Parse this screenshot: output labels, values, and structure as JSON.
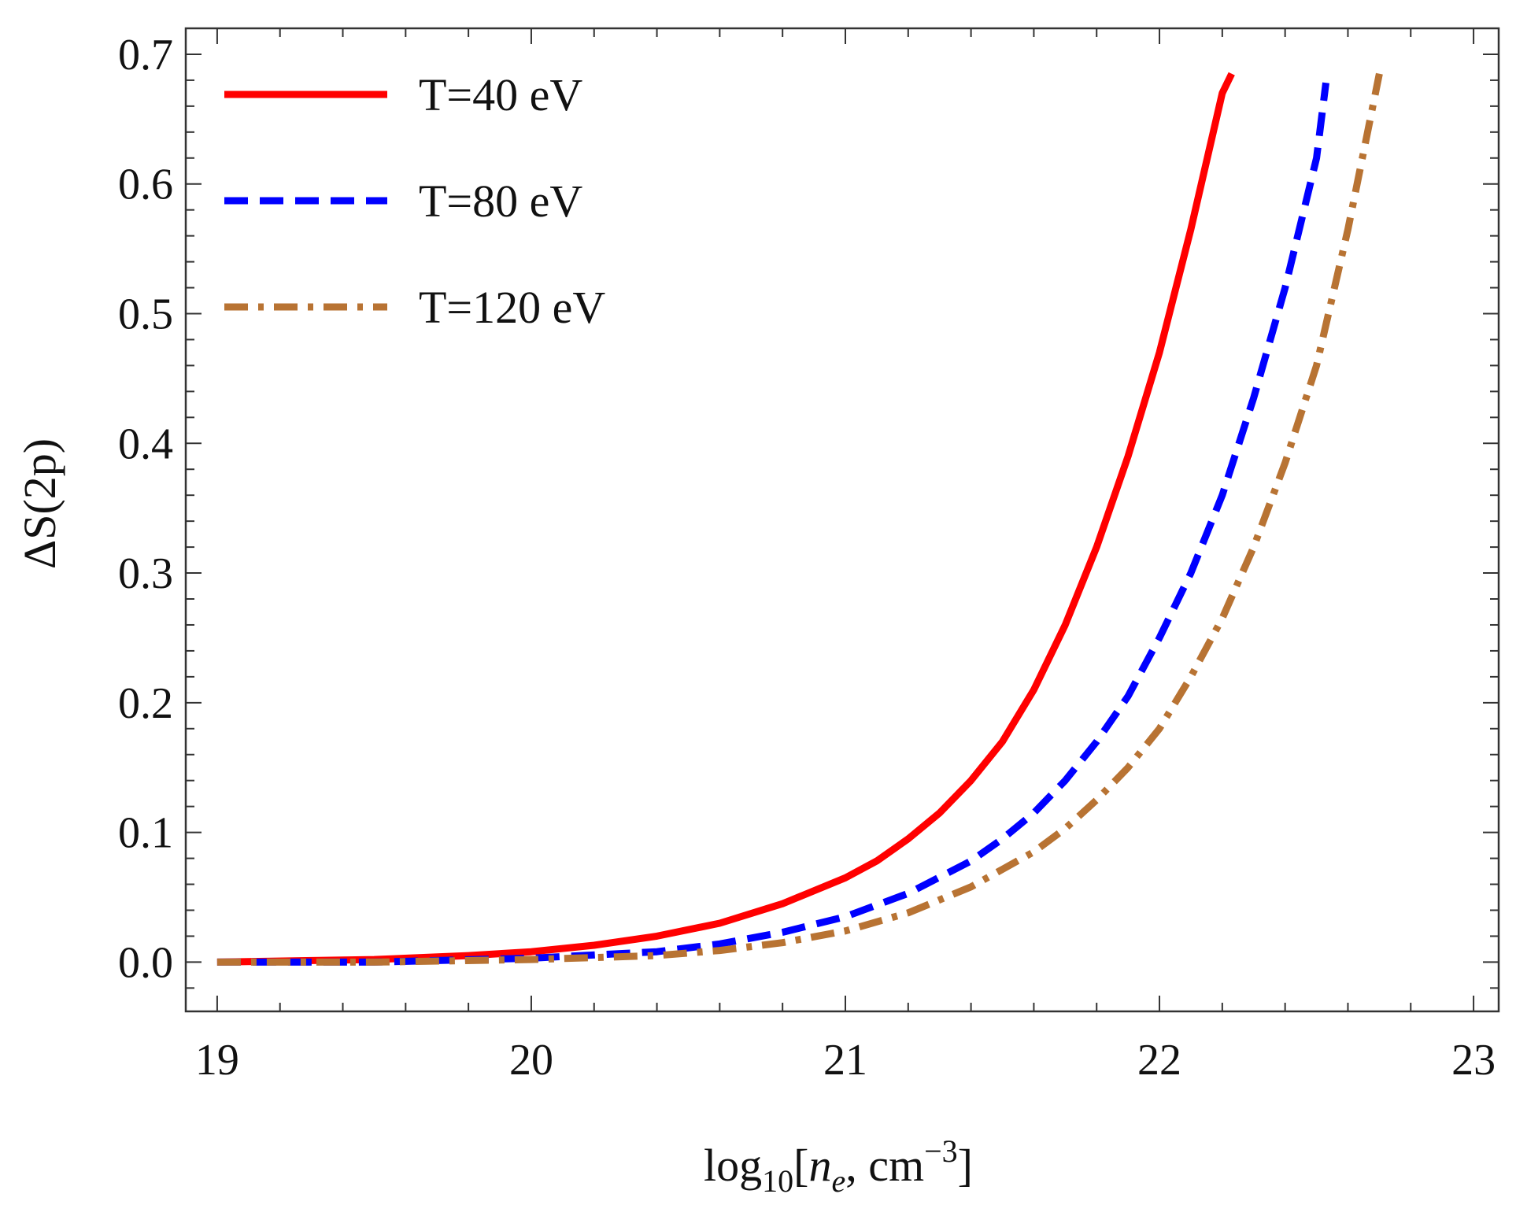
{
  "chart_data": {
    "type": "line",
    "title": "",
    "xlabel_parts": {
      "prefix": "log",
      "sub": "10",
      "open": "[",
      "var": "n",
      "var_sub": "e",
      "unit": ", cm",
      "sup": "−3",
      "close": "]"
    },
    "ylabel": "ΔS(2p)",
    "xlim": [
      18.9,
      23.08
    ],
    "ylim": [
      -0.038,
      0.72
    ],
    "x_ticks": [
      19,
      20,
      21,
      22,
      23
    ],
    "x_tick_labels": [
      "19",
      "20",
      "21",
      "22",
      "23"
    ],
    "x_minor_step": 0.2,
    "y_ticks": [
      0.0,
      0.1,
      0.2,
      0.3,
      0.4,
      0.5,
      0.6,
      0.7
    ],
    "y_tick_labels": [
      "0.0",
      "0.1",
      "0.2",
      "0.3",
      "0.4",
      "0.5",
      "0.6",
      "0.7"
    ],
    "y_minor_step": 0.02,
    "legend_position": "top-left",
    "series": [
      {
        "name": "T=40 eV",
        "color": "#ff0000",
        "style": "solid",
        "x": [
          19.0,
          19.5,
          19.8,
          20.0,
          20.2,
          20.4,
          20.6,
          20.8,
          21.0,
          21.1,
          21.2,
          21.3,
          21.4,
          21.5,
          21.6,
          21.7,
          21.8,
          21.9,
          22.0,
          22.1,
          22.2,
          22.23
        ],
        "y": [
          0.0,
          0.002,
          0.005,
          0.008,
          0.013,
          0.02,
          0.03,
          0.045,
          0.065,
          0.078,
          0.095,
          0.115,
          0.14,
          0.17,
          0.21,
          0.26,
          0.32,
          0.39,
          0.47,
          0.565,
          0.67,
          0.685
        ]
      },
      {
        "name": "T=80 eV",
        "color": "#0000ff",
        "style": "dashed",
        "x": [
          19.0,
          19.5,
          20.0,
          20.4,
          20.6,
          20.8,
          21.0,
          21.2,
          21.4,
          21.5,
          21.6,
          21.7,
          21.8,
          21.9,
          22.0,
          22.1,
          22.2,
          22.3,
          22.4,
          22.5,
          22.53
        ],
        "y": [
          0.0,
          0.0,
          0.003,
          0.008,
          0.014,
          0.023,
          0.035,
          0.053,
          0.078,
          0.095,
          0.115,
          0.14,
          0.17,
          0.205,
          0.25,
          0.3,
          0.36,
          0.435,
          0.52,
          0.62,
          0.678
        ]
      },
      {
        "name": "T=120 eV",
        "color": "#b87333",
        "style": "dashdot",
        "x": [
          19.0,
          19.5,
          20.0,
          20.4,
          20.6,
          20.8,
          21.0,
          21.2,
          21.4,
          21.6,
          21.7,
          21.8,
          21.9,
          22.0,
          22.1,
          22.2,
          22.3,
          22.4,
          22.5,
          22.6,
          22.7
        ],
        "y": [
          0.0,
          0.0,
          0.002,
          0.005,
          0.009,
          0.015,
          0.024,
          0.038,
          0.058,
          0.085,
          0.103,
          0.125,
          0.15,
          0.18,
          0.22,
          0.265,
          0.32,
          0.385,
          0.46,
          0.565,
          0.685
        ]
      }
    ]
  }
}
